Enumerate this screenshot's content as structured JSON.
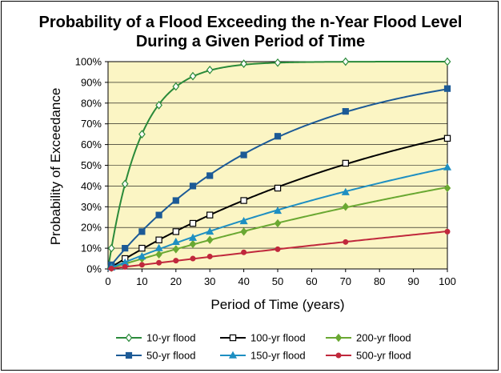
{
  "chart_data": {
    "type": "line",
    "title_line1": "Probability of a Flood Exceeding the n-Year Flood Level",
    "title_line2": "During a Given Period of Time",
    "xlabel": "Period of Time (years)",
    "ylabel": "Probability of Exceedance",
    "xlim": [
      0,
      100
    ],
    "ylim": [
      0,
      100
    ],
    "x_ticks": [
      0,
      10,
      20,
      30,
      40,
      50,
      60,
      70,
      80,
      90,
      100
    ],
    "y_ticks": [
      "0%",
      "10%",
      "20%",
      "30%",
      "40%",
      "50%",
      "60%",
      "70%",
      "80%",
      "90%",
      "100%"
    ],
    "grid": true,
    "plot_background": "#fbf5c4",
    "legend_position": "bottom",
    "series": [
      {
        "name": "10-yr flood",
        "return_period": 10,
        "color": "#2a8a3a",
        "marker": "diamond-open",
        "marker_x": [
          1,
          5,
          10,
          15,
          20,
          25,
          30,
          40,
          50,
          70,
          100
        ],
        "values": [
          10,
          41,
          65,
          79,
          88,
          93,
          96,
          99,
          99.5,
          100,
          100
        ]
      },
      {
        "name": "100-yr flood",
        "return_period": 100,
        "color": "#000000",
        "marker": "square-open",
        "marker_x": [
          1,
          5,
          10,
          15,
          20,
          25,
          30,
          40,
          50,
          70,
          100
        ],
        "values": [
          1,
          5,
          10,
          14,
          18,
          22,
          26,
          33,
          39,
          51,
          63
        ]
      },
      {
        "name": "200-yr flood",
        "return_period": 200,
        "color": "#6aa832",
        "marker": "diamond-filled",
        "marker_x": [
          1,
          5,
          10,
          15,
          20,
          25,
          30,
          40,
          50,
          70,
          100
        ],
        "values": [
          0.5,
          2.5,
          5,
          7,
          9.5,
          12,
          14,
          18,
          22,
          30,
          39
        ]
      },
      {
        "name": "50-yr flood",
        "return_period": 50,
        "color": "#1c5a96",
        "marker": "square-filled",
        "marker_x": [
          1,
          5,
          10,
          15,
          20,
          25,
          30,
          40,
          50,
          70,
          100
        ],
        "values": [
          2,
          10,
          18,
          26,
          33,
          40,
          45,
          55,
          64,
          76,
          87
        ]
      },
      {
        "name": "150-yr flood",
        "return_period": 150,
        "color": "#1e8fc2",
        "marker": "triangle-filled",
        "marker_x": [
          1,
          5,
          10,
          15,
          20,
          25,
          30,
          40,
          50,
          70,
          100
        ],
        "values": [
          0.7,
          3,
          6,
          10,
          13,
          15,
          18,
          23,
          28,
          37,
          49
        ]
      },
      {
        "name": "500-yr flood",
        "return_period": 500,
        "color": "#c0283c",
        "marker": "circle-filled",
        "marker_x": [
          1,
          5,
          10,
          15,
          20,
          25,
          30,
          40,
          50,
          70,
          100
        ],
        "values": [
          0.2,
          1,
          2,
          3,
          4,
          5,
          6,
          8,
          9.5,
          13,
          18
        ]
      }
    ]
  }
}
